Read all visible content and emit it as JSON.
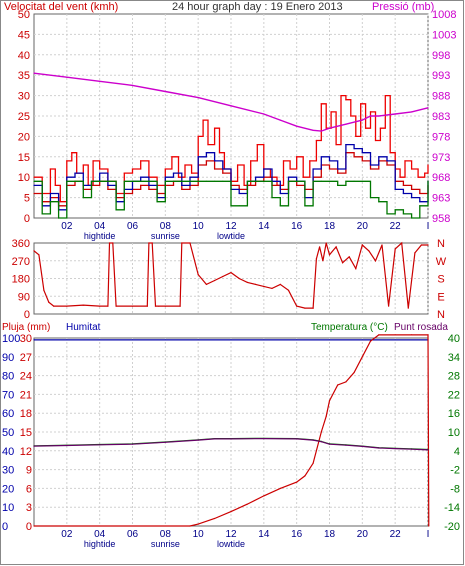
{
  "header": {
    "left_label": "Velocitat del vent (kmh)",
    "center_label": "24 hour graph day : 19 Enero 2013",
    "right_label": "Pressió (mb)"
  },
  "colors": {
    "wind": "#cc0000",
    "gust": "#ee0000",
    "avg": "#0000aa",
    "min": "#007700",
    "pressure": "#cc00cc",
    "direction": "#cc0000",
    "rain": "#cc0000",
    "humidity": "#0000aa",
    "temperature": "#007700",
    "dewpoint": "#660066",
    "left_axis": "#cc0000",
    "right_axis_pressure": "#cc00cc",
    "right_axis_temp": "#007700",
    "humidity_axis": "#0000aa"
  },
  "chart_data": [
    {
      "type": "line",
      "id": "wind_pressure",
      "title": "24 hour graph day : 19 Enero 2013",
      "ylabel": "Velocitat del vent (kmh)",
      "y2label": "Pressió (mb)",
      "xlim": [
        0,
        24
      ],
      "ylim": [
        0,
        50
      ],
      "y_ticks": [
        0,
        5,
        10,
        15,
        20,
        25,
        30,
        35,
        40,
        45,
        50
      ],
      "y2lim": [
        958,
        1008
      ],
      "y2_ticks": [
        958,
        963,
        968,
        973,
        978,
        983,
        988,
        993,
        998,
        1003,
        1008
      ],
      "x_ticks": [
        "02",
        "04",
        "06",
        "08",
        "10",
        "12",
        "14",
        "16",
        "18",
        "20",
        "22",
        "I"
      ],
      "x_annotations": [
        {
          "label": "hightide",
          "x": 4
        },
        {
          "label": "sunrise",
          "x": 8
        },
        {
          "label": "lowtide",
          "x": 12
        }
      ],
      "grid": true,
      "series": [
        {
          "key": "gust",
          "x": [
            0,
            0.5,
            1,
            1.3,
            1.6,
            2,
            2.3,
            2.6,
            3,
            3.3,
            3.6,
            4,
            4.5,
            5,
            5.5,
            6,
            6.5,
            7,
            7.5,
            8,
            8.4,
            8.8,
            9.2,
            9.6,
            10,
            10.3,
            10.6,
            11,
            11.3,
            11.6,
            12,
            12.4,
            12.8,
            13.2,
            13.6,
            14,
            14.4,
            14.8,
            15.2,
            15.6,
            16,
            16.4,
            16.8,
            17.2,
            17.5,
            17.8,
            18.1,
            18.4,
            18.7,
            19,
            19.3,
            19.6,
            19.9,
            20.2,
            20.5,
            20.8,
            21.1,
            21.4,
            21.7,
            22,
            22.3,
            22.6,
            23,
            23.4,
            23.8,
            24
          ],
          "values": [
            10,
            6,
            12,
            8,
            4,
            14,
            16,
            11,
            13,
            8,
            14,
            12,
            9,
            6,
            11,
            12,
            14,
            10,
            8,
            12,
            15,
            10,
            13,
            11,
            20,
            24,
            18,
            22,
            16,
            12,
            9,
            13,
            8,
            14,
            18,
            12,
            10,
            8,
            14,
            12,
            15,
            10,
            14,
            19,
            28,
            22,
            26,
            18,
            30,
            29,
            25,
            20,
            28,
            22,
            26,
            19,
            22,
            30,
            16,
            12,
            10,
            14,
            12,
            10,
            11,
            13
          ]
        },
        {
          "key": "wind",
          "x": [
            0,
            0.5,
            1,
            1.5,
            2,
            2.5,
            3,
            3.5,
            4,
            4.5,
            5,
            5.5,
            6,
            6.5,
            7,
            7.5,
            8,
            8.5,
            9,
            9.5,
            10,
            10.5,
            11,
            11.5,
            12,
            12.5,
            13,
            13.5,
            14,
            14.5,
            15,
            15.5,
            16,
            16.5,
            17,
            17.5,
            18,
            18.5,
            19,
            19.5,
            20,
            20.5,
            21,
            21.5,
            22,
            22.5,
            23,
            23.5,
            24
          ],
          "values": [
            6,
            4,
            5,
            3,
            8,
            9,
            7,
            8,
            9,
            7,
            5,
            6,
            7,
            8,
            7,
            6,
            8,
            9,
            7,
            8,
            13,
            14,
            12,
            11,
            8,
            7,
            8,
            9,
            10,
            8,
            7,
            9,
            8,
            7,
            10,
            13,
            12,
            11,
            16,
            15,
            14,
            12,
            14,
            13,
            9,
            8,
            7,
            6,
            8
          ]
        },
        {
          "key": "avg",
          "x": [
            0,
            0.5,
            1,
            1.5,
            2,
            2.5,
            3,
            3.5,
            4,
            4.5,
            5,
            5.5,
            6,
            6.5,
            7,
            7.5,
            8,
            8.5,
            9,
            9.5,
            10,
            10.5,
            11,
            11.5,
            12,
            12.5,
            13,
            13.5,
            14,
            14.5,
            15,
            15.5,
            16,
            16.5,
            17,
            17.5,
            18,
            18.5,
            19,
            19.5,
            20,
            20.5,
            21,
            21.5,
            22,
            22.5,
            23,
            23.5,
            24
          ],
          "values": [
            8,
            3,
            6,
            2,
            10,
            11,
            8,
            9,
            11,
            8,
            4,
            7,
            9,
            10,
            8,
            5,
            10,
            11,
            8,
            10,
            15,
            16,
            14,
            12,
            7,
            6,
            9,
            10,
            12,
            9,
            6,
            10,
            9,
            5,
            12,
            15,
            14,
            12,
            18,
            17,
            16,
            13,
            15,
            14,
            7,
            6,
            5,
            4,
            9
          ]
        },
        {
          "key": "min",
          "x": [
            0,
            0.5,
            1,
            1.5,
            2,
            2.5,
            3,
            3.5,
            4,
            4.5,
            5,
            5.5,
            6,
            6.5,
            7,
            7.5,
            8,
            8.5,
            9,
            9.5,
            10,
            10.5,
            11,
            11.5,
            12,
            12.5,
            13,
            13.5,
            14,
            14.5,
            15,
            15.5,
            16,
            16.5,
            17,
            17.5,
            18,
            18.5,
            19,
            19.5,
            20,
            20.5,
            21,
            21.5,
            22,
            22.5,
            23,
            23.5,
            24
          ],
          "values": [
            9,
            1,
            4,
            0,
            9,
            9,
            5,
            9,
            9,
            9,
            2,
            9,
            9,
            9,
            9,
            4,
            9,
            9,
            9,
            9,
            9,
            9,
            9,
            9,
            3,
            3,
            9,
            9,
            9,
            5,
            3,
            9,
            9,
            3,
            9,
            9,
            9,
            8,
            9,
            9,
            9,
            5,
            4,
            1,
            2,
            1,
            0,
            3,
            9
          ]
        },
        {
          "key": "pressure",
          "axis": "y2",
          "x": [
            0,
            2,
            4,
            6,
            8,
            10,
            12,
            14,
            15,
            16,
            17,
            17.5,
            18,
            19,
            20,
            20.5,
            21,
            22,
            23,
            24
          ],
          "values": [
            993.5,
            992.5,
            991.5,
            990.5,
            989,
            987.5,
            985.5,
            983.5,
            982,
            980.5,
            979.5,
            979.3,
            980,
            981,
            982,
            983,
            983,
            983.5,
            984,
            985
          ]
        }
      ]
    },
    {
      "type": "line",
      "id": "direction",
      "ylim": [
        0,
        360
      ],
      "y_ticks": [
        0,
        90,
        180,
        270,
        360
      ],
      "y2_labels": [
        "N",
        "W",
        "S",
        "E",
        "N"
      ],
      "xlim": [
        0,
        24
      ],
      "grid": true,
      "series": [
        {
          "key": "direction",
          "x": [
            0,
            0.3,
            0.6,
            0.9,
            1.2,
            2,
            3,
            4,
            4.5,
            4.6,
            4.8,
            5,
            6,
            6.9,
            7,
            7.2,
            7.4,
            7.6,
            8,
            8.9,
            9,
            9.5,
            10,
            10.5,
            11,
            11.5,
            12,
            12.5,
            13,
            13.5,
            14,
            14.5,
            15,
            15.5,
            16,
            16.5,
            17,
            17.2,
            17.4,
            17.6,
            17.8,
            18,
            18.4,
            18.8,
            19.2,
            19.6,
            20,
            20.4,
            20.8,
            21.2,
            21.6,
            22,
            22.4,
            22.8,
            23.2,
            23.6,
            24
          ],
          "values": [
            320,
            300,
            120,
            60,
            40,
            40,
            45,
            40,
            40,
            360,
            360,
            40,
            40,
            40,
            360,
            360,
            40,
            40,
            40,
            40,
            360,
            360,
            200,
            150,
            170,
            190,
            210,
            180,
            160,
            150,
            140,
            130,
            150,
            120,
            40,
            30,
            30,
            280,
            340,
            270,
            360,
            300,
            340,
            260,
            290,
            230,
            350,
            320,
            270,
            350,
            40,
            330,
            360,
            30,
            310,
            350,
            350
          ]
        }
      ]
    },
    {
      "type": "line",
      "id": "rain_temp",
      "legend": [
        "Pluja (mm)",
        "Humitat",
        "Temperatura (°C)",
        "Punt rosada"
      ],
      "xlim": [
        0,
        24
      ],
      "ylim": [
        0,
        100
      ],
      "y_ticks": [
        0,
        10,
        20,
        30,
        40,
        50,
        60,
        70,
        80,
        90,
        100
      ],
      "rain_axis_ticks": [
        0,
        3,
        6,
        9,
        12,
        15,
        18,
        21,
        24,
        27,
        30
      ],
      "y2lim": [
        -20,
        40
      ],
      "y2_ticks": [
        -20,
        -14,
        -8,
        -2,
        4,
        10,
        16,
        22,
        28,
        34,
        40
      ],
      "y2_tick_labels": [
        "-20",
        "-14",
        "-8",
        "-2",
        "4",
        "10",
        "16",
        "22",
        "28",
        "34",
        "40"
      ],
      "x_ticks": [
        "02",
        "04",
        "06",
        "08",
        "10",
        "12",
        "14",
        "16",
        "18",
        "20",
        "22",
        "I"
      ],
      "x_annotations": [
        {
          "label": "hightide",
          "x": 4
        },
        {
          "label": "sunrise",
          "x": 8
        },
        {
          "label": "lowtide",
          "x": 12
        }
      ],
      "grid": true,
      "series": [
        {
          "key": "humidity",
          "x": [
            0,
            24
          ],
          "values": [
            99,
            99
          ]
        },
        {
          "key": "rain",
          "axis": "rain",
          "x": [
            0,
            9.5,
            10,
            11,
            12,
            13,
            14,
            15,
            16,
            16.5,
            17,
            17.5,
            17.8,
            18,
            18.5,
            19,
            19.5,
            20,
            20.5,
            21,
            22,
            23,
            24,
            24.05
          ],
          "values": [
            0,
            0,
            0.3,
            1.2,
            2.3,
            3.5,
            4.8,
            6,
            7,
            8,
            10,
            15,
            17.5,
            20,
            22.5,
            23,
            24.5,
            27,
            29.5,
            30.5,
            30.5,
            30.5,
            30.5,
            0
          ]
        },
        {
          "key": "temperature",
          "axis": "y2",
          "x": [
            0,
            2,
            4,
            6,
            8,
            10,
            11,
            12,
            14,
            16,
            17,
            17.5,
            18,
            19,
            20,
            21,
            22,
            23,
            24
          ],
          "values": [
            5.6,
            5.8,
            6,
            6.2,
            6.8,
            7.5,
            7.9,
            7.9,
            8,
            7.9,
            7.5,
            7,
            6.2,
            5.9,
            5.5,
            5,
            4.8,
            4.6,
            4.4
          ]
        },
        {
          "key": "dewpoint",
          "axis": "y2",
          "x": [
            0,
            2,
            4,
            6,
            8,
            10,
            11,
            12,
            14,
            16,
            17,
            17.5,
            18,
            19,
            20,
            21,
            22,
            23,
            24
          ],
          "values": [
            5.5,
            5.7,
            5.9,
            6.1,
            6.7,
            7.4,
            7.8,
            7.8,
            7.9,
            7.8,
            7.4,
            6.9,
            6.1,
            5.8,
            5.4,
            4.9,
            4.7,
            4.5,
            4.3
          ]
        }
      ]
    }
  ]
}
